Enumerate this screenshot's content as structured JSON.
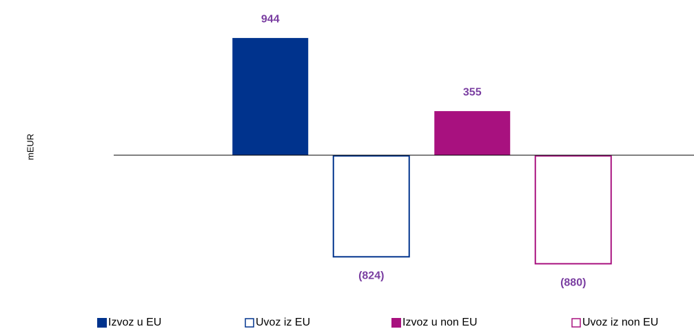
{
  "chart_data": {
    "type": "bar",
    "y_label": "mEUR",
    "categories": [
      null
    ],
    "series": [
      {
        "name": "Izvoz u EU",
        "color": "#00338d",
        "filled": true,
        "values": [
          944
        ],
        "value_labels": [
          "944"
        ]
      },
      {
        "name": "Uvoz iz EU",
        "color": "#00338d",
        "filled": false,
        "values": [
          -824
        ],
        "value_labels": [
          "(824)"
        ]
      },
      {
        "name": "Izvoz u non EU",
        "color": "#a8117f",
        "filled": true,
        "values": [
          355
        ],
        "value_labels": [
          "355"
        ]
      },
      {
        "name": "Uvoz iz non EU",
        "color": "#a8117f",
        "filled": false,
        "values": [
          -880
        ],
        "value_labels": [
          "(880)"
        ]
      }
    ],
    "value_label_color": "#7a3ea1",
    "ylim": [
      -1100,
      1100
    ]
  }
}
